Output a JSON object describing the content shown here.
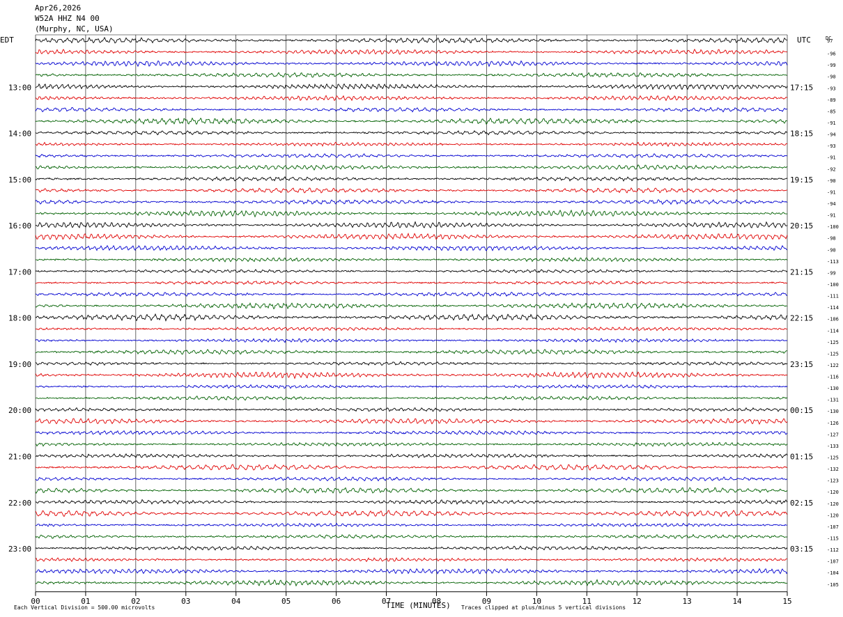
{
  "header": {
    "date": "Apr26,2026",
    "station": "W52A HHZ N4 00",
    "location": "(Murphy, NC, USA)"
  },
  "labels": {
    "left_tz": "EDT",
    "right_tz": "UTC",
    "dc": "DC",
    "footer_left": "Each Vertical Division =  500.00 microvolts",
    "footer_center": "TIME (MINUTES)",
    "footer_right": "Traces clipped at plus/minus 5 vertical divisions"
  },
  "chart_data": {
    "type": "line",
    "title": "W52A HHZ N4 00",
    "xlabel": "TIME (MINUTES)",
    "xlim": [
      0,
      15
    ],
    "x_ticks": [
      "00",
      "01",
      "02",
      "03",
      "04",
      "05",
      "06",
      "07",
      "08",
      "09",
      "10",
      "11",
      "12",
      "13",
      "14",
      "15"
    ],
    "left_hour_labels": [
      "13:00",
      "14:00",
      "15:00",
      "16:00",
      "17:00",
      "18:00",
      "19:00",
      "20:00",
      "21:00",
      "22:00",
      "23:00"
    ],
    "right_hour_labels": [
      "17:15",
      "18:15",
      "19:15",
      "20:15",
      "21:15",
      "22:15",
      "23:15",
      "00:15",
      "01:15",
      "02:15",
      "03:15"
    ],
    "trace_colors": [
      "#000000",
      "#e00000",
      "#0000d0",
      "#006000"
    ],
    "dc_offsets": [
      "97",
      "-96",
      "-99",
      "-90",
      "-93",
      "-89",
      "-85",
      "-91",
      "-94",
      "-93",
      "-91",
      "-92",
      "-90",
      "-91",
      "-94",
      "-91",
      "-100",
      "-98",
      "-90",
      "-113",
      "-99",
      "-100",
      "-111",
      "-114",
      "-106",
      "-114",
      "-125",
      "-125",
      "-122",
      "-116",
      "-130",
      "-131",
      "-130",
      "-126",
      "-127",
      "-133",
      "-125",
      "-132",
      "-123",
      "-120",
      "-120",
      "-120",
      "-107",
      "-115",
      "-112",
      "-107",
      "-104",
      "-105"
    ],
    "rows": 48,
    "vertical_division_microvolts": 500.0
  }
}
